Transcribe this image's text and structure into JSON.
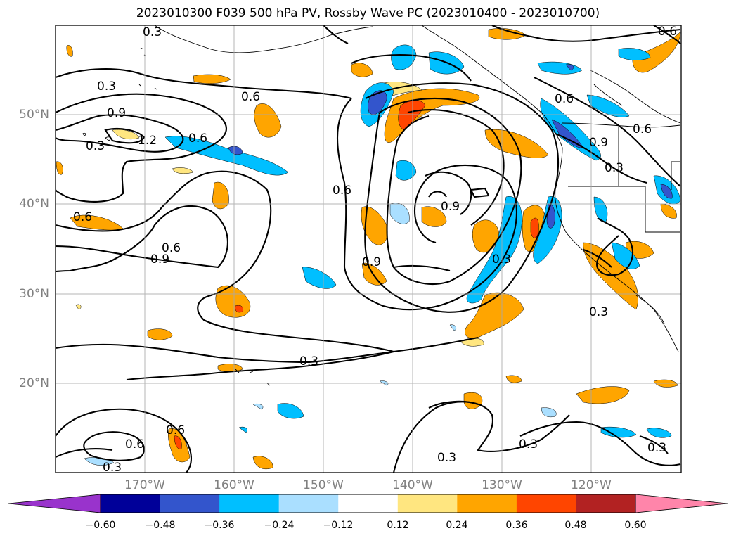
{
  "title": "2023010300 F039 500 hPa PV, Rossby Wave PC (2023010400 - 2023010700)",
  "chart_data": {
    "type": "map",
    "title": "2023010300 F039 500 hPa PV, Rossby Wave PC (2023010400 - 2023010700)",
    "lon_range": [
      -180,
      -110
    ],
    "lat_range": [
      10,
      60
    ],
    "lon_ticks": [
      "170°W",
      "160°W",
      "150°W",
      "140°W",
      "130°W",
      "120°W"
    ],
    "lat_ticks": [
      "20°N",
      "30°N",
      "40°N",
      "50°N"
    ],
    "grid": true,
    "contour_labels": [
      "0.3",
      "0.6",
      "0.9",
      "1.2"
    ],
    "colorbar": {
      "levels": [
        "−0.60",
        "−0.48",
        "−0.36",
        "−0.24",
        "−0.12",
        "0.12",
        "0.24",
        "0.36",
        "0.48",
        "0.60"
      ],
      "colors": [
        "#9933cc",
        "#000099",
        "#3355cc",
        "#00bfff",
        "#aadfff",
        "#ffffff",
        "#ffe680",
        "#ffa500",
        "#ff4500",
        "#b22222",
        "#ff85aa"
      ]
    }
  }
}
